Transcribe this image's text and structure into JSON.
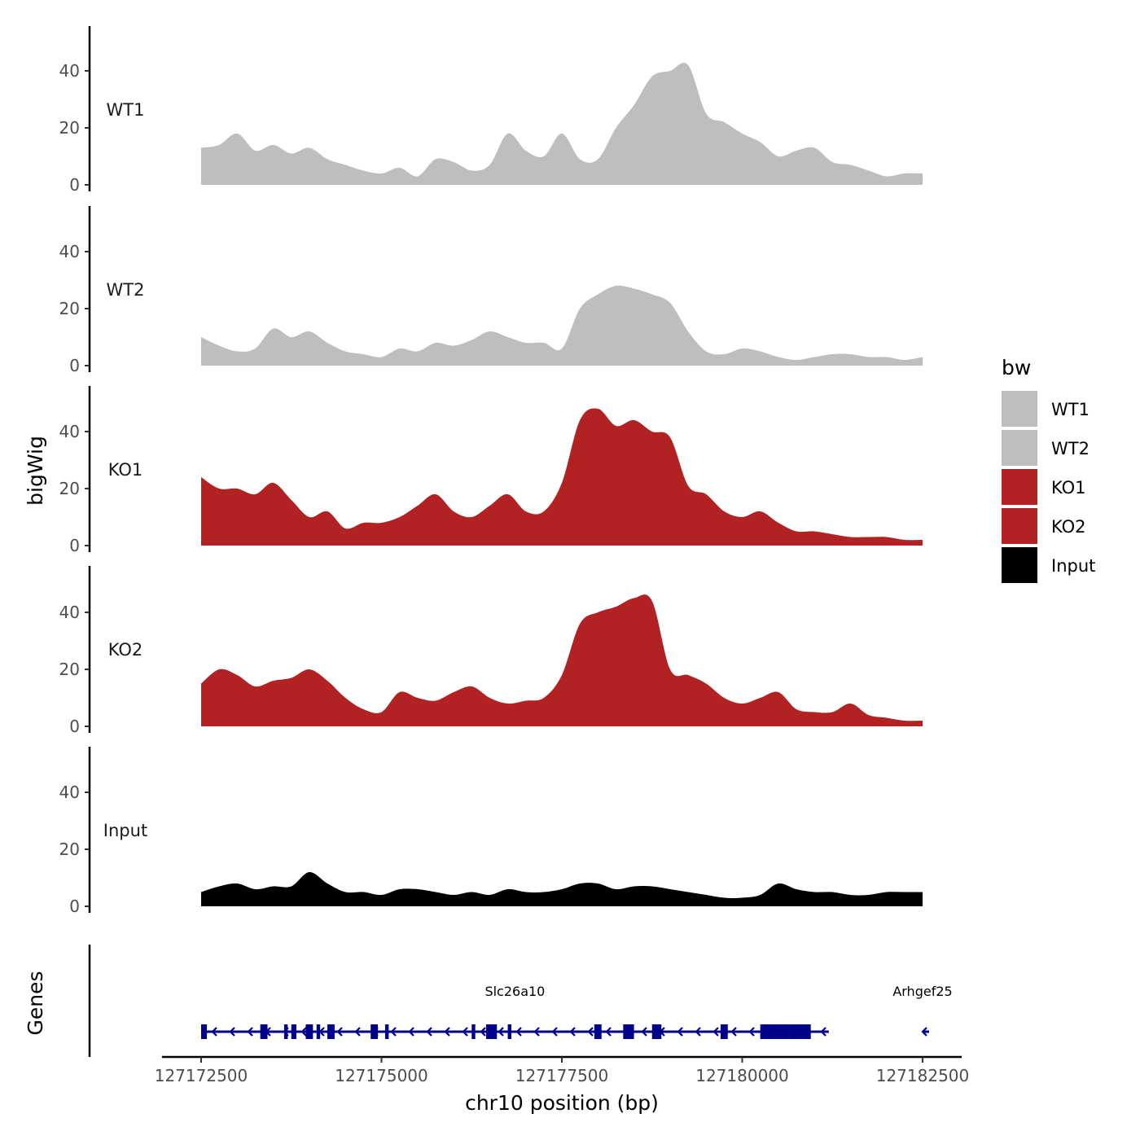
{
  "chart_data": {
    "type": "area",
    "title": "",
    "xlabel": "chr10 position (bp)",
    "ylabel": "bigWig",
    "gene_panel_label": "Genes",
    "xlim": [
      127172500,
      127182500
    ],
    "x_ticks": [
      127172500,
      127175000,
      127177500,
      127180000,
      127182500
    ],
    "x_tick_labels": [
      "127172500",
      "127175000",
      "127177500",
      "127180000",
      "127182500"
    ],
    "ylim": [
      0,
      55
    ],
    "y_ticks": [
      0,
      20,
      40
    ],
    "y_tick_labels": [
      "0",
      "20",
      "40"
    ],
    "legend": {
      "title": "bw",
      "position": "right",
      "entries": [
        {
          "label": "WT1",
          "color": "#bebebe"
        },
        {
          "label": "WT2",
          "color": "#bebebe"
        },
        {
          "label": "KO1",
          "color": "#b22222"
        },
        {
          "label": "KO2",
          "color": "#b22222"
        },
        {
          "label": "Input",
          "color": "#000000"
        }
      ]
    },
    "x": [
      127172500,
      127172750,
      127173000,
      127173250,
      127173500,
      127173750,
      127174000,
      127174250,
      127174500,
      127174750,
      127175000,
      127175250,
      127175500,
      127175750,
      127176000,
      127176250,
      127176500,
      127176750,
      127177000,
      127177250,
      127177500,
      127177750,
      127178000,
      127178250,
      127178500,
      127178750,
      127179000,
      127179250,
      127179500,
      127179750,
      127180000,
      127180250,
      127180500,
      127180750,
      127181000,
      127181250,
      127181500,
      127181750,
      127182000,
      127182250,
      127182500
    ],
    "series": [
      {
        "name": "WT1",
        "color": "#bebebe",
        "values": [
          13,
          14,
          18,
          12,
          14,
          11,
          13,
          9,
          7,
          5,
          4,
          6,
          3,
          9,
          8,
          5,
          7,
          18,
          12,
          10,
          18,
          9,
          9,
          20,
          28,
          38,
          40,
          42,
          25,
          22,
          18,
          15,
          10,
          12,
          13,
          8,
          7,
          5,
          3,
          4,
          4
        ]
      },
      {
        "name": "WT2",
        "color": "#bebebe",
        "values": [
          10,
          7,
          5,
          6,
          13,
          10,
          12,
          8,
          5,
          4,
          3,
          6,
          5,
          8,
          7,
          9,
          12,
          10,
          8,
          8,
          6,
          20,
          25,
          28,
          27,
          25,
          22,
          12,
          5,
          4,
          6,
          5,
          3,
          2,
          3,
          4,
          4,
          3,
          3,
          2,
          3
        ]
      },
      {
        "name": "KO1",
        "color": "#b22222",
        "values": [
          24,
          20,
          20,
          18,
          22,
          16,
          10,
          12,
          6,
          8,
          8,
          10,
          14,
          18,
          12,
          10,
          14,
          18,
          12,
          12,
          22,
          44,
          48,
          42,
          44,
          40,
          38,
          21,
          18,
          12,
          10,
          12,
          8,
          5,
          5,
          4,
          3,
          3,
          3,
          2,
          2
        ]
      },
      {
        "name": "KO2",
        "color": "#b22222",
        "values": [
          15,
          20,
          18,
          14,
          16,
          17,
          20,
          16,
          10,
          6,
          5,
          12,
          10,
          9,
          12,
          14,
          10,
          8,
          9,
          10,
          18,
          36,
          40,
          42,
          45,
          44,
          20,
          18,
          15,
          10,
          8,
          10,
          12,
          6,
          5,
          5,
          8,
          4,
          3,
          2,
          2
        ]
      },
      {
        "name": "Input",
        "color": "#000000",
        "values": [
          5,
          7,
          8,
          6,
          7,
          7,
          12,
          8,
          5,
          5,
          4,
          6,
          6,
          5,
          4,
          5,
          4,
          6,
          5,
          5,
          6,
          8,
          8,
          6,
          7,
          7,
          6,
          5,
          4,
          3,
          3,
          4,
          8,
          6,
          5,
          5,
          4,
          4,
          5,
          5,
          5
        ]
      }
    ],
    "genes": [
      {
        "name": "Slc26a10",
        "start": 127172500,
        "end": 127181200,
        "strand": "-",
        "color": "#00008b",
        "exons": [
          [
            127172500,
            127172580
          ],
          [
            127173320,
            127173420
          ],
          [
            127173650,
            127173700
          ],
          [
            127173750,
            127173820
          ],
          [
            127173950,
            127174050
          ],
          [
            127174100,
            127174150
          ],
          [
            127174250,
            127174350
          ],
          [
            127174850,
            127174950
          ],
          [
            127175050,
            127175100
          ],
          [
            127176250,
            127176300
          ],
          [
            127176450,
            127176600
          ],
          [
            127176750,
            127176800
          ],
          [
            127177950,
            127178050
          ],
          [
            127178350,
            127178500
          ],
          [
            127178750,
            127178880
          ],
          [
            127179700,
            127179800
          ],
          [
            127180250,
            127180650
          ],
          [
            127180650,
            127180950
          ]
        ]
      },
      {
        "name": "Arhgef25",
        "start": 127182500,
        "end": 127182600,
        "strand": "-",
        "color": "#00008b",
        "exons": []
      }
    ]
  }
}
